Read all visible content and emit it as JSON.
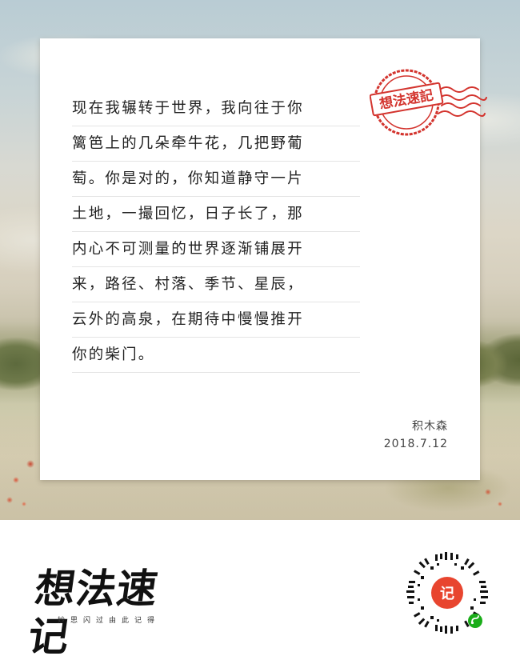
{
  "stamp": {
    "text": "想法速記",
    "color": "#d3342e"
  },
  "note": {
    "lines": [
      "现在我辗转于世界，我向往于你",
      "篱笆上的几朵牵牛花，几把野葡",
      "萄。你是对的，你知道静守一片",
      "土地，一撮回忆，日子长了，那",
      "内心不可测量的世界逐渐铺展开",
      "来，路径、村落、季节、星辰，",
      "云外的高泉，在期待中慢慢推开",
      "你的柴门。"
    ],
    "author": "积木森",
    "date": "2018.7.12"
  },
  "footer": {
    "logo_title": "想法速记",
    "logo_subtitle": "妙思闪过由此记得",
    "qr_center_text": "记",
    "qr_icon": "mini-program-icon",
    "accent": "#e8452f",
    "mini_program_color": "#1aad19"
  }
}
